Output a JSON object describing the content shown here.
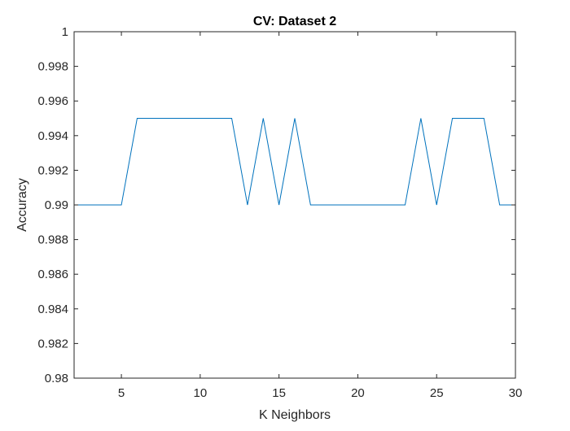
{
  "chart_data": {
    "type": "line",
    "title": "CV: Dataset 2",
    "xlabel": "K Neighbors",
    "ylabel": "Accuracy",
    "xlim": [
      2,
      30
    ],
    "ylim": [
      0.98,
      1
    ],
    "xticks": [
      5,
      10,
      15,
      20,
      25,
      30
    ],
    "yticks": [
      0.98,
      0.982,
      0.984,
      0.986,
      0.988,
      0.99,
      0.992,
      0.994,
      0.996,
      0.998,
      1
    ],
    "xtick_labels": [
      "5",
      "10",
      "15",
      "20",
      "25",
      "30"
    ],
    "ytick_labels": [
      "0.98",
      "0.982",
      "0.984",
      "0.986",
      "0.988",
      "0.99",
      "0.992",
      "0.994",
      "0.996",
      "0.998",
      "1"
    ],
    "grid": false,
    "series": [
      {
        "color": "#0072bd",
        "x": [
          2,
          3,
          4,
          5,
          6,
          7,
          8,
          9,
          10,
          11,
          12,
          13,
          14,
          15,
          16,
          17,
          18,
          19,
          20,
          21,
          22,
          23,
          24,
          25,
          26,
          27,
          28,
          29,
          30
        ],
        "y": [
          0.99,
          0.99,
          0.99,
          0.99,
          0.995,
          0.995,
          0.995,
          0.995,
          0.995,
          0.995,
          0.995,
          0.99,
          0.995,
          0.99,
          0.995,
          0.99,
          0.99,
          0.99,
          0.99,
          0.99,
          0.99,
          0.99,
          0.995,
          0.99,
          0.995,
          0.995,
          0.995,
          0.99,
          0.99
        ]
      }
    ]
  }
}
